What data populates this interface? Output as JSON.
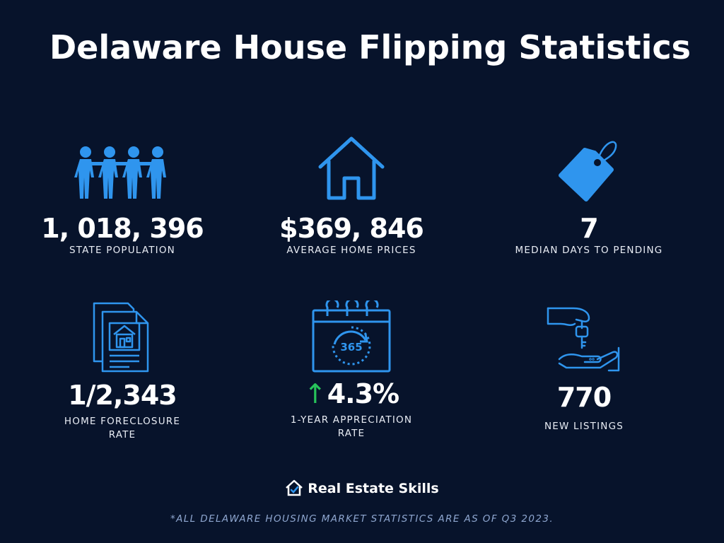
{
  "title": "Delaware House Flipping Statistics",
  "accent_color": "#2f95ee",
  "stats": [
    {
      "icon": "people-icon",
      "value": "1, 018, 396",
      "label": "STATE POPULATION"
    },
    {
      "icon": "house-icon",
      "value": "$369, 846",
      "label": "AVERAGE HOME PRICES"
    },
    {
      "icon": "price-tag-icon",
      "value": "7",
      "label": "MEDIAN DAYS TO PENDING"
    },
    {
      "icon": "foreclosure-document-icon",
      "value": "1/2,343",
      "label": "HOME FORECLOSURE RATE"
    },
    {
      "icon": "calendar-365-icon",
      "value_arrow": "↑",
      "value": "4.3%",
      "label": "1-YEAR APPRECIATION RATE",
      "calendar_text": "365"
    },
    {
      "icon": "hand-key-icon",
      "value": "770",
      "label": "NEW LISTINGS"
    }
  ],
  "brand": {
    "name": "Real Estate Skills",
    "icon": "house-check-logo-icon"
  },
  "footnote": "*ALL DELAWARE HOUSING MARKET STATISTICS ARE AS OF Q3 2023."
}
